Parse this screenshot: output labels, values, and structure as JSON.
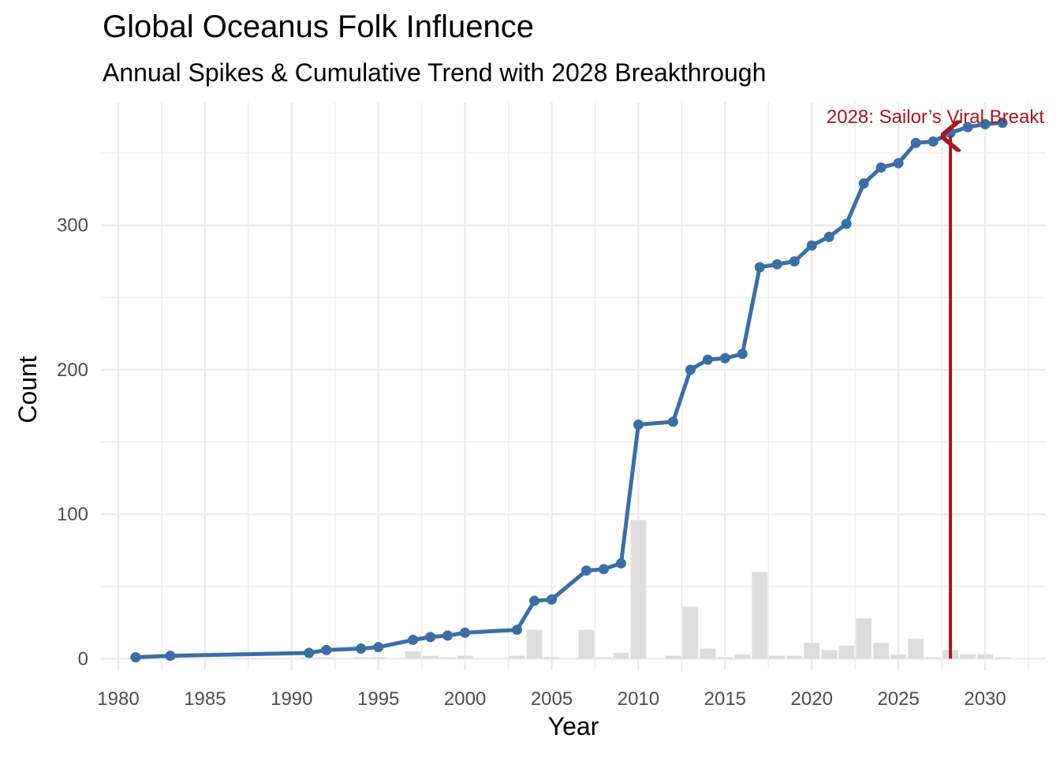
{
  "colors": {
    "line": "#3a6ea5",
    "bar": "#dddddd",
    "annotation": "#a8161f",
    "grid": "#ebebeb"
  },
  "chart_data": {
    "type": "line",
    "title": "Global Oceanus Folk Influence",
    "subtitle": "Annual Spikes & Cumulative Trend with 2028 Breakthrough",
    "xlabel": "Year",
    "ylabel": "Count",
    "xlim": [
      1979,
      2033.5
    ],
    "ylim": [
      -8,
      385
    ],
    "x_ticks": [
      1980,
      1985,
      1990,
      1995,
      2000,
      2005,
      2010,
      2015,
      2020,
      2025,
      2030
    ],
    "y_ticks": [
      0,
      100,
      200,
      300
    ],
    "grid": true,
    "series": [
      {
        "type": "line",
        "x": [
          1981,
          1983,
          1991,
          1992,
          1994,
          1995,
          1997,
          1998,
          1999,
          2000,
          2003,
          2004,
          2005,
          2007,
          2008,
          2009,
          2010,
          2012,
          2013,
          2014,
          2015,
          2016,
          2017,
          2018,
          2019,
          2020,
          2021,
          2022,
          2023,
          2024,
          2025,
          2026,
          2027,
          2028,
          2029,
          2030,
          2031
        ],
        "values": [
          1,
          2,
          4,
          6,
          7,
          8,
          13,
          15,
          16,
          18,
          20,
          40,
          41,
          61,
          62,
          66,
          162,
          164,
          200,
          207,
          208,
          211,
          271,
          273,
          275,
          286,
          292,
          301,
          329,
          340,
          343,
          357,
          358,
          364,
          368,
          370,
          371
        ]
      },
      {
        "type": "bar",
        "x": [
          1981,
          1983,
          1991,
          1992,
          1994,
          1995,
          1997,
          1998,
          1999,
          2000,
          2003,
          2004,
          2005,
          2007,
          2008,
          2009,
          2010,
          2012,
          2013,
          2014,
          2015,
          2016,
          2017,
          2018,
          2019,
          2020,
          2021,
          2022,
          2023,
          2024,
          2025,
          2026,
          2027,
          2028,
          2029,
          2030,
          2031
        ],
        "values": [
          1,
          1,
          1,
          1,
          1,
          1,
          5,
          2,
          1,
          2,
          2,
          20,
          1,
          20,
          1,
          4,
          96,
          2,
          36,
          7,
          1,
          3,
          60,
          2,
          2,
          11,
          6,
          9,
          28,
          11,
          3,
          14,
          1,
          6,
          3,
          3,
          1
        ]
      }
    ],
    "annotations": [
      {
        "x": 2028,
        "y_from": 0,
        "y_to": 364,
        "text": "2028: Sailor’s Viral Breakt"
      }
    ]
  }
}
